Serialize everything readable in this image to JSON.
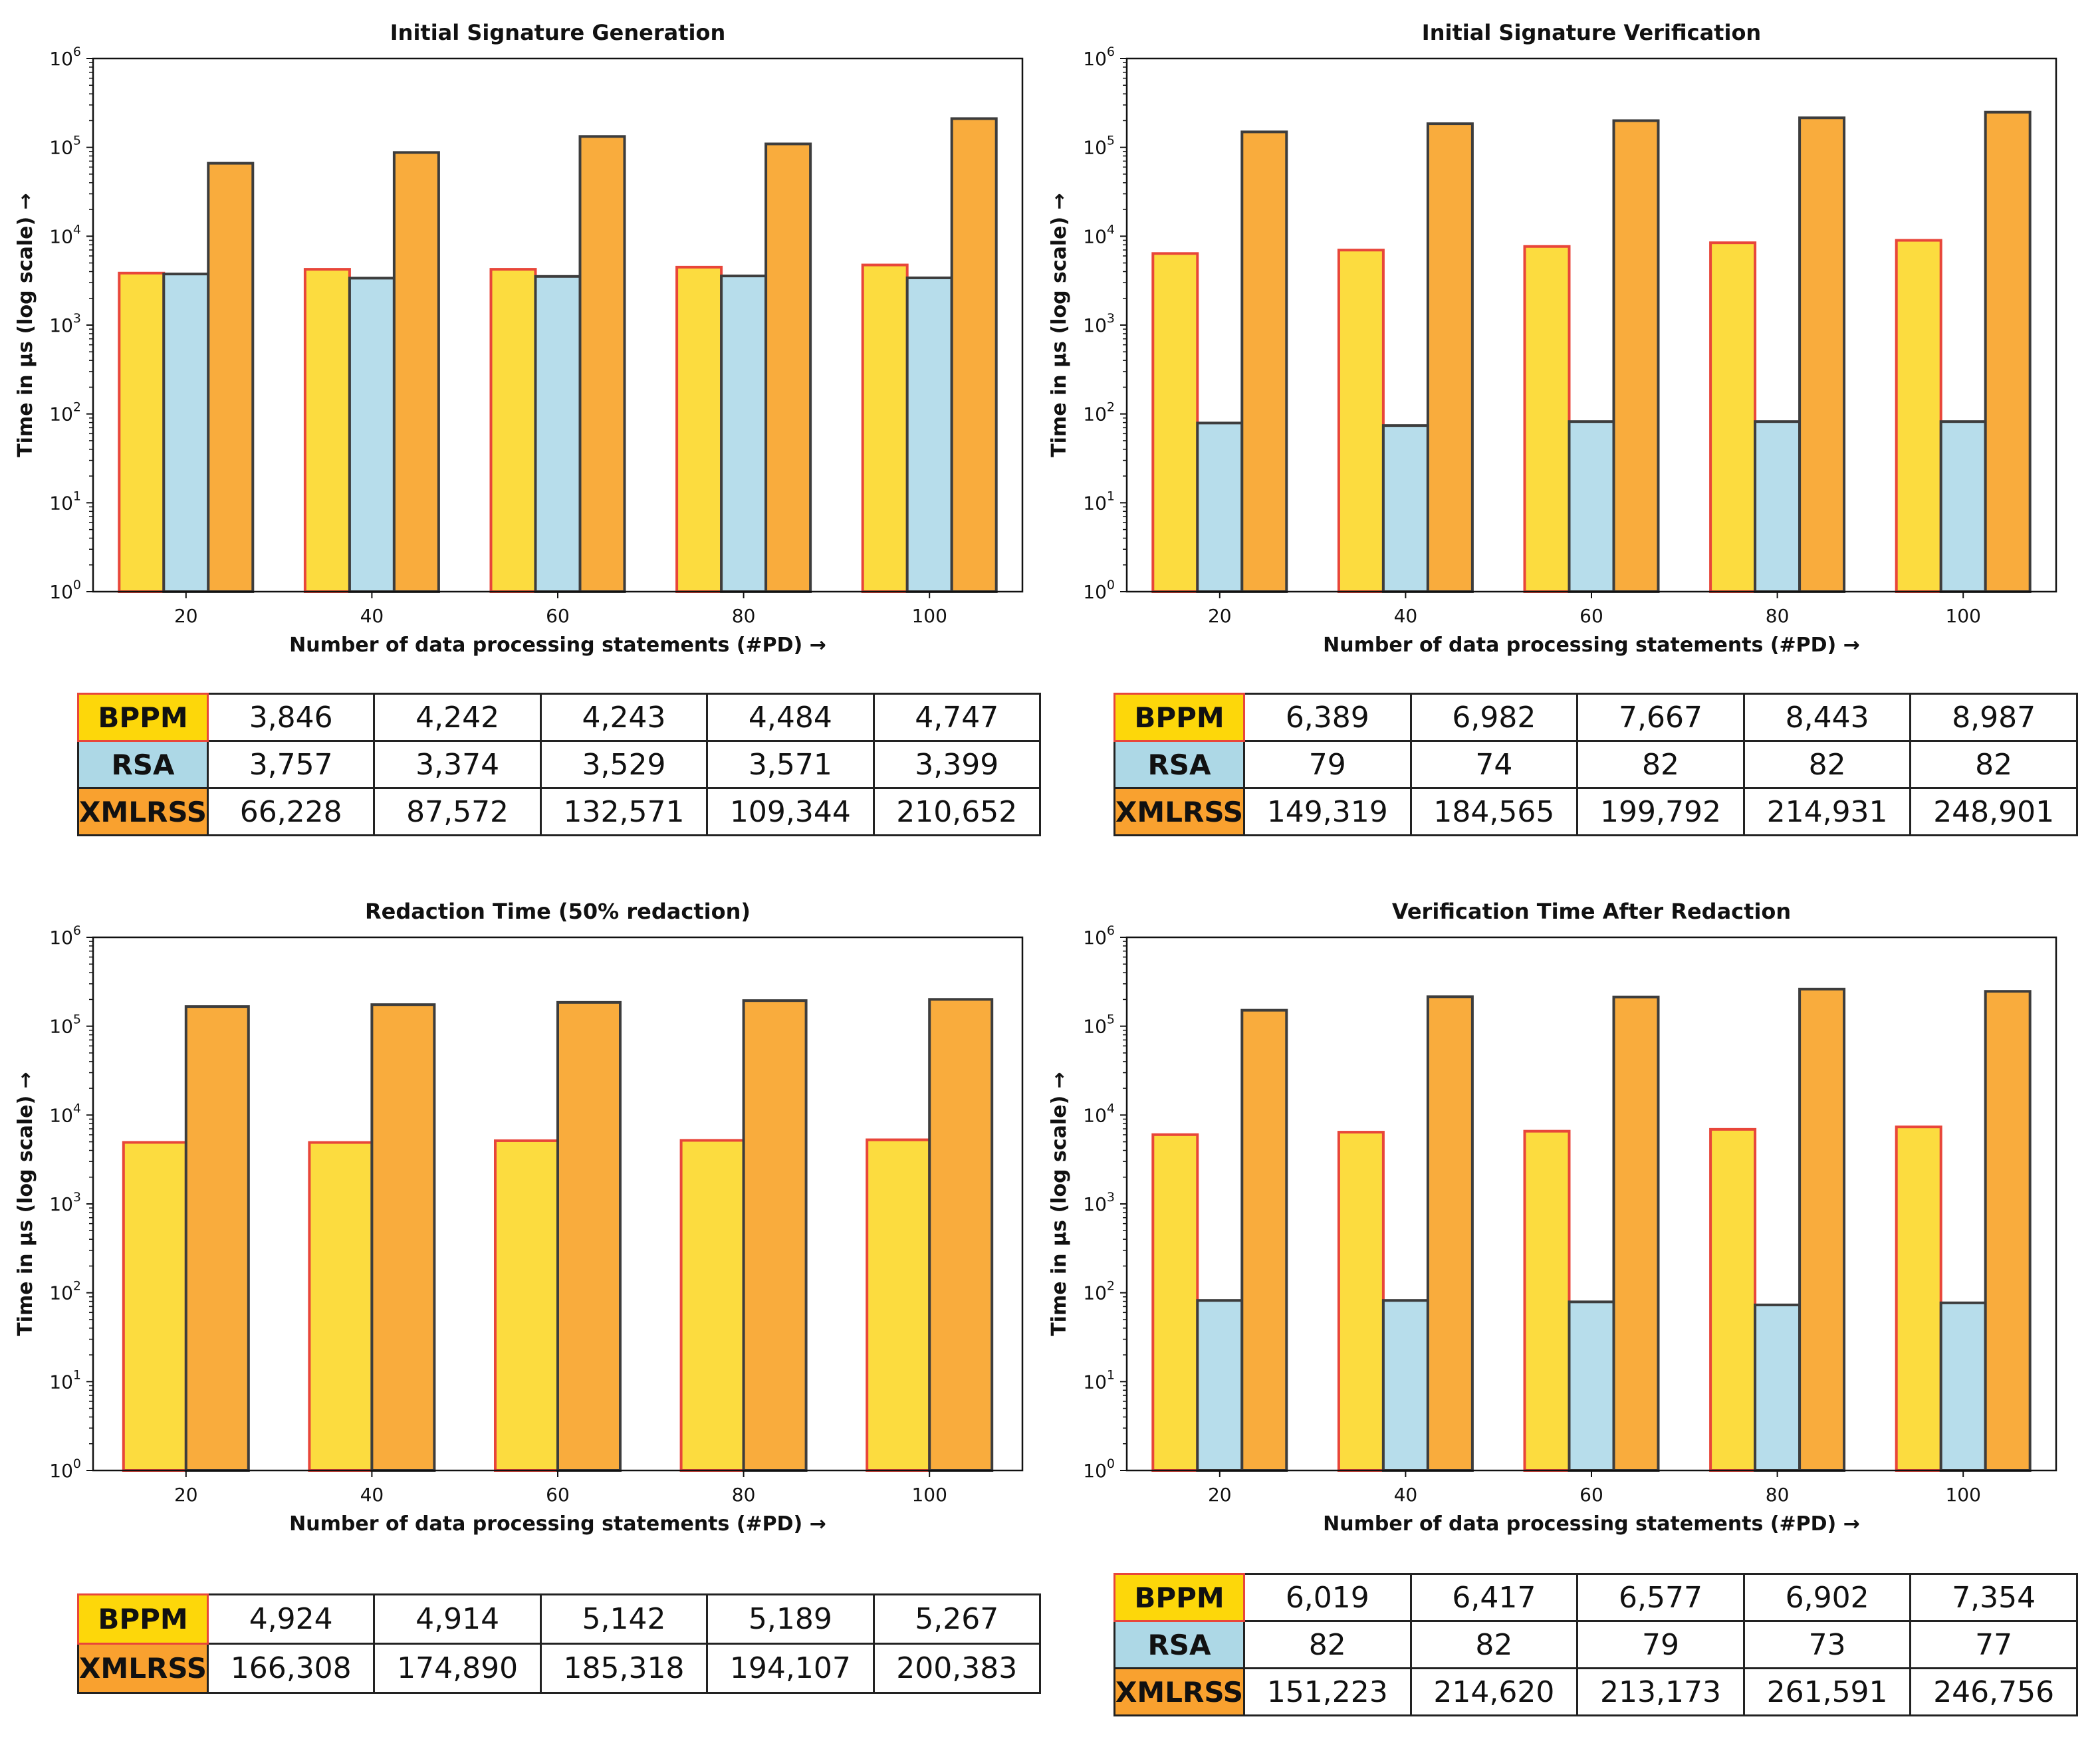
{
  "colors": {
    "bppm_fill": "#FCDC3F",
    "bppm_edge": "#E8463A",
    "rsa_fill": "#B7DDEB",
    "xmlrss_fill": "#F9AC3D",
    "dark_edge": "#3D3D3D",
    "label_bppm_bg": "#FDD70A",
    "label_rsa_bg": "#ADD8E6",
    "label_xmlrss_bg": "#F9A12F"
  },
  "chart_data": [
    {
      "type": "bar",
      "title": "Initial Signature Generation",
      "xlabel": "Number of data processing statements (#PD) →",
      "ylabel": "Time in μs (log scale) →",
      "yscale": "log",
      "ylim": [
        1,
        1000000
      ],
      "categories": [
        "20",
        "40",
        "60",
        "80",
        "100"
      ],
      "series": [
        {
          "name": "BPPM",
          "values": [
            3846,
            4242,
            4243,
            4484,
            4747
          ]
        },
        {
          "name": "RSA",
          "values": [
            3757,
            3374,
            3529,
            3571,
            3399
          ]
        },
        {
          "name": "XMLRSS",
          "values": [
            66228,
            87572,
            132571,
            109344,
            210652
          ]
        }
      ],
      "table": [
        {
          "label": "BPPM",
          "cells": [
            "3,846",
            "4,242",
            "4,243",
            "4,484",
            "4,747"
          ]
        },
        {
          "label": "RSA",
          "cells": [
            "3,757",
            "3,374",
            "3,529",
            "3,571",
            "3,399"
          ]
        },
        {
          "label": "XMLRSS",
          "cells": [
            "66,228",
            "87,572",
            "132,571",
            "109,344",
            "210,652"
          ]
        }
      ]
    },
    {
      "type": "bar",
      "title": "Initial Signature Verification",
      "xlabel": "Number of data processing statements (#PD) →",
      "ylabel": "Time in μs (log scale) →",
      "yscale": "log",
      "ylim": [
        1,
        1000000
      ],
      "categories": [
        "20",
        "40",
        "60",
        "80",
        "100"
      ],
      "series": [
        {
          "name": "BPPM",
          "values": [
            6389,
            6982,
            7667,
            8443,
            8987
          ]
        },
        {
          "name": "RSA",
          "values": [
            79,
            74,
            82,
            82,
            82
          ]
        },
        {
          "name": "XMLRSS",
          "values": [
            149319,
            184565,
            199792,
            214931,
            248901
          ]
        }
      ],
      "table": [
        {
          "label": "BPPM",
          "cells": [
            "6,389",
            "6,982",
            "7,667",
            "8,443",
            "8,987"
          ]
        },
        {
          "label": "RSA",
          "cells": [
            "79",
            "74",
            "82",
            "82",
            "82"
          ]
        },
        {
          "label": "XMLRSS",
          "cells": [
            "149,319",
            "184,565",
            "199,792",
            "214,931",
            "248,901"
          ]
        }
      ]
    },
    {
      "type": "bar",
      "title": "Redaction Time (50% redaction)",
      "xlabel": "Number of data processing statements (#PD) →",
      "ylabel": "Time in μs (log scale) →",
      "yscale": "log",
      "ylim": [
        1,
        1000000
      ],
      "categories": [
        "20",
        "40",
        "60",
        "80",
        "100"
      ],
      "series": [
        {
          "name": "BPPM",
          "values": [
            4924,
            4914,
            5142,
            5189,
            5267
          ]
        },
        {
          "name": "XMLRSS",
          "values": [
            166308,
            174890,
            185318,
            194107,
            200383
          ]
        }
      ],
      "table": [
        {
          "label": "BPPM",
          "cells": [
            "4,924",
            "4,914",
            "5,142",
            "5,189",
            "5,267"
          ]
        },
        {
          "label": "XMLRSS",
          "cells": [
            "166,308",
            "174,890",
            "185,318",
            "194,107",
            "200,383"
          ]
        }
      ]
    },
    {
      "type": "bar",
      "title": "Verification Time After Redaction",
      "xlabel": "Number of data processing statements (#PD) →",
      "ylabel": "Time in μs (log scale) →",
      "yscale": "log",
      "ylim": [
        1,
        1000000
      ],
      "categories": [
        "20",
        "40",
        "60",
        "80",
        "100"
      ],
      "series": [
        {
          "name": "BPPM",
          "values": [
            6019,
            6417,
            6577,
            6902,
            7354
          ]
        },
        {
          "name": "RSA",
          "values": [
            82,
            82,
            79,
            73,
            77
          ]
        },
        {
          "name": "XMLRSS",
          "values": [
            151223,
            214620,
            213173,
            261591,
            246756
          ]
        }
      ],
      "table": [
        {
          "label": "BPPM",
          "cells": [
            "6,019",
            "6,417",
            "6,577",
            "6,902",
            "7,354"
          ]
        },
        {
          "label": "RSA",
          "cells": [
            "82",
            "82",
            "79",
            "73",
            "77"
          ]
        },
        {
          "label": "XMLRSS",
          "cells": [
            "151,223",
            "214,620",
            "213,173",
            "261,591",
            "246,756"
          ]
        }
      ]
    }
  ]
}
